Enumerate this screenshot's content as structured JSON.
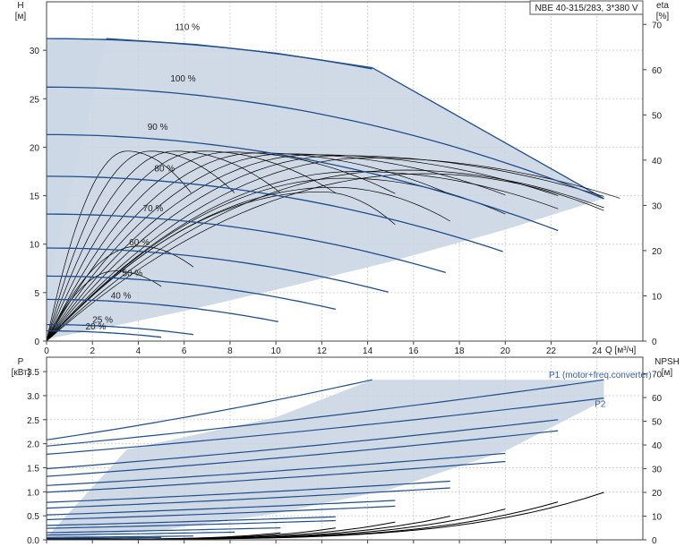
{
  "title_box": "NBE 40-315/283, 3*380 V",
  "colors": {
    "area": "#c8d4e3",
    "area_light": "#e6f0fa",
    "curve": "#1f4e8c",
    "eta": "#000000",
    "grid": "#d4d4d4"
  },
  "chart_data": [
    {
      "type": "line",
      "name": "head",
      "xlabel": "Q [м³/ч]",
      "ylabel_name": "H",
      "ylabel_unit": "[м]",
      "y2label_name": "eta",
      "y2label_unit": "[%]",
      "xlim": [
        0,
        26
      ],
      "ylim": [
        0,
        35
      ],
      "y2lim": [
        0,
        75
      ],
      "xticks": [
        0,
        2,
        4,
        6,
        8,
        10,
        12,
        14,
        16,
        18,
        20,
        22,
        24
      ],
      "xtick_labels": [
        "0",
        "2",
        "4",
        "6",
        "8",
        "10",
        "12",
        "14",
        "16",
        "18",
        "20",
        "22",
        "24"
      ],
      "yticks": [
        0,
        5,
        10,
        15,
        20,
        25,
        30
      ],
      "ytick_labels": [
        "0",
        "5",
        "10",
        "15",
        "20",
        "25",
        "30"
      ],
      "y2ticks": [
        0,
        10,
        20,
        30,
        40,
        50,
        60,
        70
      ],
      "y2tick_labels": [
        "0",
        "10",
        "20",
        "30",
        "40",
        "50",
        "60",
        "70"
      ],
      "grid": true,
      "operating_area": [
        [
          0,
          31.2
        ],
        [
          2.6,
          31.2
        ],
        [
          6.5,
          30.6
        ],
        [
          10,
          29.7
        ],
        [
          14.2,
          28.2
        ],
        [
          24.3,
          14.7
        ],
        [
          20,
          11.5
        ],
        [
          15,
          8.2
        ],
        [
          10,
          5.3
        ],
        [
          6,
          3.1
        ],
        [
          3,
          1.6
        ],
        [
          0,
          0.2
        ]
      ],
      "light_area": [
        [
          0,
          31.2
        ],
        [
          2.6,
          31.2
        ],
        [
          0,
          5
        ]
      ],
      "speed_curves": [
        {
          "label": "110 %",
          "h0": 31.2,
          "qmax": 14.2,
          "k": 0.0155,
          "label_q": 5.6,
          "label_h": 32.1
        },
        {
          "label": "100 %",
          "h0": 26.2,
          "qmax": 24.3,
          "k": 0.0195,
          "label_q": 5.4,
          "label_h": 26.8
        },
        {
          "label": "90 %",
          "h0": 21.3,
          "qmax": 22.3,
          "k": 0.0199,
          "label_q": 4.4,
          "label_h": 21.8
        },
        {
          "label": "80 %",
          "h0": 17.0,
          "qmax": 19.9,
          "k": 0.0196,
          "label_q": 4.7,
          "label_h": 17.5
        },
        {
          "label": "70 %",
          "h0": 13.1,
          "qmax": 17.4,
          "k": 0.0199,
          "label_q": 4.2,
          "label_h": 13.4
        },
        {
          "label": "60 %",
          "h0": 9.6,
          "qmax": 14.9,
          "k": 0.0205,
          "label_q": 3.6,
          "label_h": 9.9
        },
        {
          "label": "50 %",
          "h0": 6.7,
          "qmax": 12.6,
          "k": 0.0215,
          "label_q": 3.3,
          "label_h": 6.7
        },
        {
          "label": "40 %",
          "h0": 4.3,
          "qmax": 10.1,
          "k": 0.0225,
          "label_q": 2.8,
          "label_h": 4.4
        },
        {
          "label": "25 %",
          "h0": 1.7,
          "qmax": 6.4,
          "k": 0.025,
          "label_q": 2.0,
          "label_h": 1.9
        },
        {
          "label": "20 %",
          "h0": 1.05,
          "qmax": 5.0,
          "k": 0.026,
          "label_q": 1.7,
          "label_h": 1.2
        }
      ],
      "eta_curves": [
        {
          "qpk": 3.5,
          "epk": 42.0,
          "qend": 6.3
        },
        {
          "qpk": 4.5,
          "epk": 42.0,
          "qend": 8.2
        },
        {
          "qpk": 5.6,
          "epk": 42.0,
          "qend": 10.2
        },
        {
          "qpk": 6.8,
          "epk": 42.0,
          "qend": 12.6
        },
        {
          "qpk": 8.0,
          "epk": 41.8,
          "qend": 15.2
        },
        {
          "qpk": 9.2,
          "epk": 41.6,
          "qend": 17.6
        },
        {
          "qpk": 10.4,
          "epk": 41.4,
          "qend": 20.0
        },
        {
          "qpk": 11.6,
          "epk": 41.2,
          "qend": 22.3
        },
        {
          "qpk": 12.8,
          "epk": 41.0,
          "qend": 24.3
        },
        {
          "qpk": 14.0,
          "epk": 40.5,
          "qend": 25.0
        },
        {
          "qpk": 3.0,
          "epk": 15.5,
          "qend": 5.0
        },
        {
          "qpk": 4.0,
          "epk": 21.0,
          "qend": 6.4
        },
        {
          "qpk": 13.5,
          "epk": 37.5,
          "qend": 22.3
        },
        {
          "qpk": 13.0,
          "epk": 36.0,
          "qend": 20.0
        },
        {
          "qpk": 12.5,
          "epk": 34.0,
          "qend": 17.6
        },
        {
          "qpk": 12.0,
          "epk": 33.0,
          "qend": 15.2
        },
        {
          "qpk": 15.5,
          "epk": 37.8,
          "qend": 24.3
        },
        {
          "qpk": 16.5,
          "epk": 37.0,
          "qend": 24.3
        }
      ]
    },
    {
      "type": "line",
      "name": "power",
      "ylabel_name": "P",
      "ylabel_unit": "[кВт]",
      "y2label_name": "NPSH",
      "y2label_unit": "[м]",
      "xlim": [
        0,
        26
      ],
      "ylim": [
        0,
        3.8
      ],
      "y2lim": [
        0,
        77
      ],
      "yticks": [
        0,
        0.5,
        1.0,
        1.5,
        2.0,
        2.5,
        3.0,
        3.5
      ],
      "ytick_labels": [
        "0.0",
        "0.5",
        "1.0",
        "1.5",
        "2.0",
        "2.5",
        "3.0",
        "3.5"
      ],
      "y2ticks": [
        0,
        10,
        20,
        30,
        40,
        50,
        60,
        70
      ],
      "y2tick_labels": [
        "0",
        "10",
        "20",
        "30",
        "40",
        "50",
        "60",
        "70"
      ],
      "grid": true,
      "series_labels": [
        {
          "text": "P1 (motor+freq.converter)",
          "q": 21.9,
          "p": 3.37
        },
        {
          "text": "P2",
          "q": 23.9,
          "p": 2.77
        }
      ],
      "operating_area": [
        [
          0,
          0.05
        ],
        [
          3.5,
          1.88
        ],
        [
          10,
          2.55
        ],
        [
          14.2,
          3.33
        ],
        [
          24.3,
          3.33
        ],
        [
          24.3,
          2.9
        ],
        [
          20,
          1.85
        ],
        [
          15,
          1.05
        ],
        [
          10,
          0.55
        ],
        [
          5,
          0.2
        ],
        [
          0,
          0.02
        ]
      ],
      "power_curves": [
        {
          "p0": 2.08,
          "qend": 14.2,
          "pend": 3.33
        },
        {
          "p0": 1.95,
          "qend": 24.3,
          "pend": 3.33
        },
        {
          "p0": 1.78,
          "qend": 24.3,
          "pend": 2.95
        },
        {
          "p0": 1.48,
          "qend": 22.3,
          "pend": 2.5
        },
        {
          "p0": 1.32,
          "qend": 22.3,
          "pend": 2.27
        },
        {
          "p0": 1.13,
          "qend": 20.0,
          "pend": 1.8
        },
        {
          "p0": 0.99,
          "qend": 20.0,
          "pend": 1.63
        },
        {
          "p0": 0.78,
          "qend": 17.6,
          "pend": 1.22
        },
        {
          "p0": 0.66,
          "qend": 17.6,
          "pend": 1.08
        },
        {
          "p0": 0.52,
          "qend": 15.2,
          "pend": 0.82
        },
        {
          "p0": 0.42,
          "qend": 15.2,
          "pend": 0.7
        },
        {
          "p0": 0.3,
          "qend": 12.6,
          "pend": 0.48
        },
        {
          "p0": 0.24,
          "qend": 12.6,
          "pend": 0.4
        },
        {
          "p0": 0.15,
          "qend": 10.2,
          "pend": 0.25
        },
        {
          "p0": 0.1,
          "qend": 8.2,
          "pend": 0.16
        },
        {
          "p0": 0.05,
          "qend": 6.4,
          "pend": 0.08
        },
        {
          "p0": 0.03,
          "qend": 5.0,
          "pend": 0.05
        }
      ],
      "npsh_curves": [
        {
          "qend": 10.2,
          "nend": 3.0
        },
        {
          "qend": 12.6,
          "nend": 5.0
        },
        {
          "qend": 15.2,
          "nend": 7.5
        },
        {
          "qend": 17.6,
          "nend": 10.0
        },
        {
          "qend": 20.0,
          "nend": 13.0
        },
        {
          "qend": 22.3,
          "nend": 16.0
        },
        {
          "qend": 24.3,
          "nend": 20.0
        }
      ]
    }
  ]
}
